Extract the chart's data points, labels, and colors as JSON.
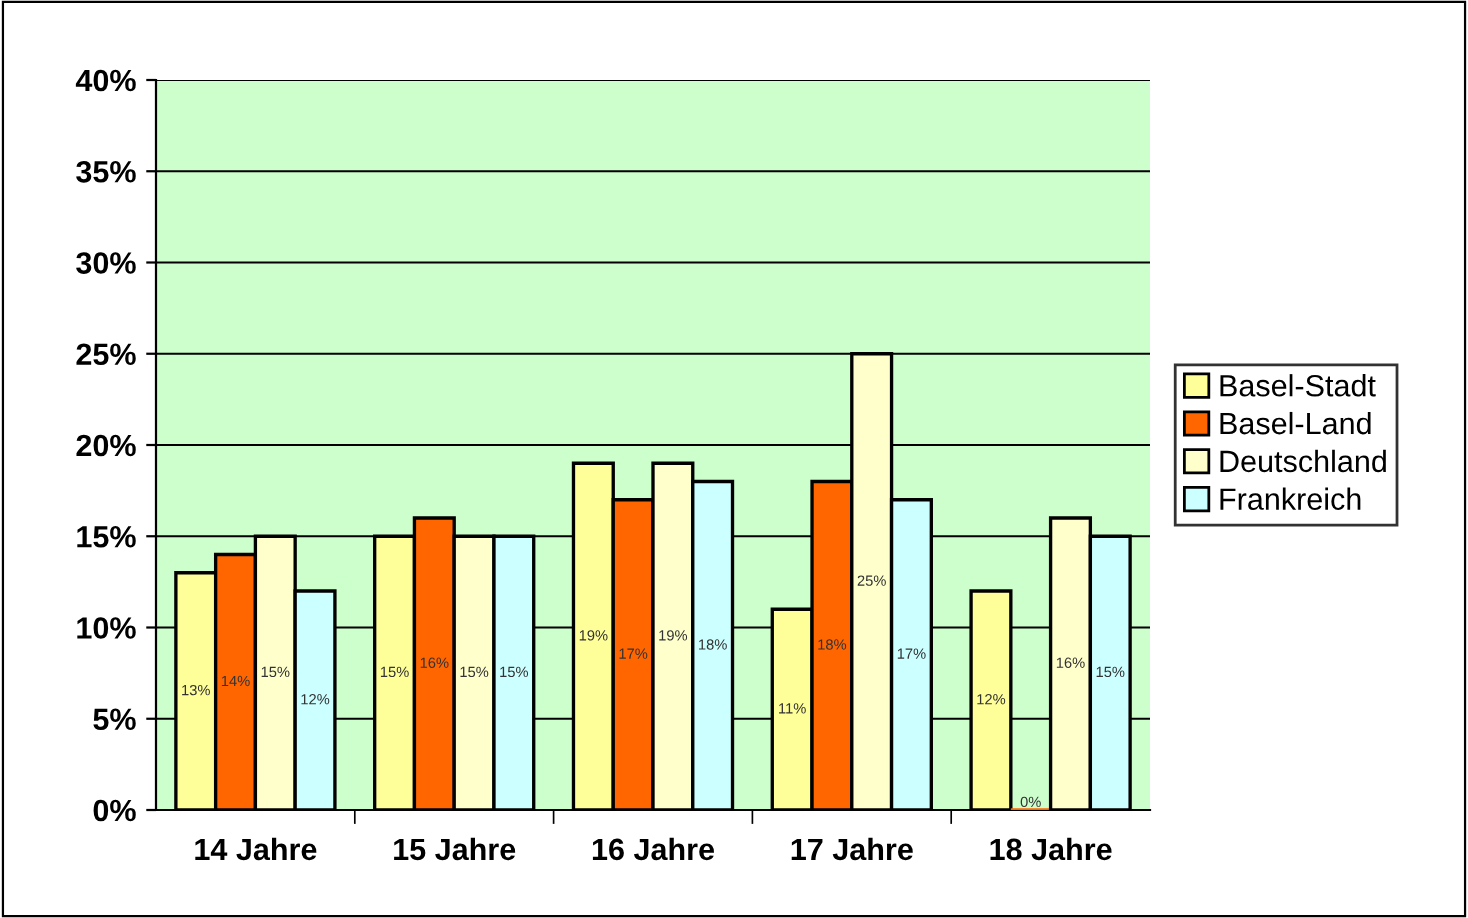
{
  "chart_data": {
    "type": "bar",
    "categories": [
      "14 Jahre",
      "15 Jahre",
      "16 Jahre",
      "17 Jahre",
      "18 Jahre"
    ],
    "series": [
      {
        "name": "Basel-Stadt",
        "color": "#ffff99",
        "values": [
          13,
          15,
          19,
          11,
          12
        ],
        "value_labels": [
          "13%",
          "15%",
          "19%",
          "11%",
          "12%"
        ]
      },
      {
        "name": "Basel-Land",
        "color": "#ff6600",
        "values": [
          14,
          16,
          17,
          18,
          0
        ],
        "value_labels": [
          "14%",
          "16%",
          "17%",
          "18%",
          "0%"
        ]
      },
      {
        "name": "Deutschland",
        "color": "#ffffcc",
        "values": [
          15,
          15,
          19,
          25,
          16
        ],
        "value_labels": [
          "15%",
          "15%",
          "19%",
          "25%",
          "16%"
        ]
      },
      {
        "name": "Frankreich",
        "color": "#ccffff",
        "values": [
          12,
          15,
          18,
          17,
          15
        ],
        "value_labels": [
          "12%",
          "15%",
          "18%",
          "17%",
          "15%"
        ]
      }
    ],
    "ylim": [
      0,
      40
    ],
    "yticks": [
      {
        "value": 0,
        "label": "0%"
      },
      {
        "value": 5,
        "label": "5%"
      },
      {
        "value": 10,
        "label": "10%"
      },
      {
        "value": 15,
        "label": "15%"
      },
      {
        "value": 20,
        "label": "20%"
      },
      {
        "value": 25,
        "label": "25%"
      },
      {
        "value": 30,
        "label": "30%"
      },
      {
        "value": 35,
        "label": "35%"
      },
      {
        "value": 40,
        "label": "40%"
      }
    ],
    "grid": "y",
    "legend": "right"
  }
}
